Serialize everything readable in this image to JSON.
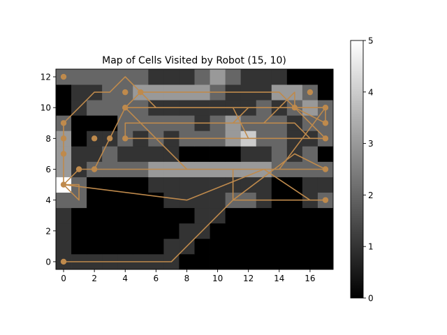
{
  "chart_data": {
    "type": "heatmap",
    "title": "Map of Cells Visited by Robot (15, 10)",
    "xlabel": "",
    "ylabel": "",
    "x_range": [
      -0.5,
      17.5
    ],
    "y_range": [
      -0.5,
      12.5
    ],
    "x_ticks": [
      0,
      2,
      4,
      6,
      8,
      10,
      12,
      14,
      16
    ],
    "y_ticks": [
      0,
      2,
      4,
      6,
      8,
      10,
      12
    ],
    "colormap": "gray",
    "color_range": [
      0,
      5
    ],
    "colorbar_ticks": [
      0,
      1,
      2,
      3,
      4,
      5
    ],
    "grid": false,
    "path_color": "#bf8a4c",
    "grid_cols": 18,
    "grid_rows": 13,
    "cells": [
      [
        1,
        1,
        1,
        1,
        1,
        1,
        1,
        1,
        0,
        0,
        0,
        0,
        0,
        0,
        0,
        0,
        0,
        0
      ],
      [
        1,
        0,
        0,
        0,
        0,
        0,
        0,
        1,
        1,
        0,
        0,
        0,
        0,
        0,
        0,
        0,
        0,
        0
      ],
      [
        1,
        0,
        0,
        0,
        0,
        0,
        0,
        0,
        1,
        1,
        0,
        0,
        0,
        0,
        0,
        0,
        0,
        0
      ],
      [
        1,
        0,
        0,
        0,
        0,
        0,
        0,
        0,
        0,
        1,
        1,
        0,
        0,
        0,
        0,
        0,
        0,
        0
      ],
      [
        2,
        2,
        0,
        0,
        0,
        0,
        0,
        1,
        1,
        1,
        1,
        2,
        2,
        1,
        0,
        0,
        1,
        2
      ],
      [
        5,
        2,
        0,
        0,
        0,
        0,
        1,
        1,
        1,
        1,
        1,
        1,
        1,
        1,
        0,
        0,
        1,
        1
      ],
      [
        3,
        1,
        2,
        2,
        2,
        2,
        3,
        3,
        3,
        3,
        3,
        3,
        3,
        3,
        2,
        2,
        2,
        2
      ],
      [
        3,
        1,
        1,
        2,
        1,
        1,
        1,
        1,
        0,
        0,
        0,
        0,
        1,
        1,
        2,
        1,
        2,
        0
      ],
      [
        3,
        0,
        1,
        1,
        2,
        1,
        2,
        1,
        2,
        2,
        2,
        3,
        4,
        2,
        2,
        1,
        1,
        2
      ],
      [
        2,
        0,
        0,
        0,
        2,
        2,
        2,
        2,
        2,
        1,
        2,
        3,
        2,
        2,
        2,
        1,
        2,
        2
      ],
      [
        0,
        1,
        2,
        2,
        2,
        2,
        1,
        1,
        1,
        1,
        1,
        1,
        1,
        2,
        1,
        2,
        3,
        2
      ],
      [
        0,
        1,
        1,
        2,
        2,
        3,
        3,
        3,
        3,
        3,
        2,
        1,
        1,
        1,
        3,
        3,
        2,
        0
      ],
      [
        2,
        2,
        2,
        2,
        2,
        2,
        1,
        1,
        1,
        2,
        3,
        2,
        1,
        1,
        1,
        0,
        0,
        0
      ]
    ],
    "path": [
      [
        0,
        0
      ],
      [
        7,
        0
      ],
      [
        11,
        4
      ],
      [
        11,
        6
      ],
      [
        1,
        6
      ],
      [
        0,
        5
      ],
      [
        1,
        5
      ],
      [
        1,
        4
      ],
      [
        0,
        5
      ],
      [
        0,
        9
      ],
      [
        2,
        11
      ],
      [
        3,
        11
      ],
      [
        4,
        12
      ],
      [
        6,
        10
      ],
      [
        11,
        10
      ],
      [
        12,
        8
      ],
      [
        16,
        8
      ],
      [
        15,
        9
      ],
      [
        4,
        9
      ],
      [
        4,
        8
      ],
      [
        17,
        8
      ],
      [
        14,
        11
      ],
      [
        5,
        11
      ],
      [
        4,
        10
      ],
      [
        17,
        10
      ],
      [
        17,
        9
      ],
      [
        15,
        10
      ],
      [
        12,
        10
      ],
      [
        11,
        9
      ],
      [
        13,
        9
      ],
      [
        15,
        11
      ],
      [
        15,
        10
      ],
      [
        17,
        10
      ],
      [
        14,
        6
      ],
      [
        2,
        6
      ],
      [
        4,
        10
      ],
      [
        8,
        6
      ],
      [
        17,
        6
      ],
      [
        15,
        7
      ],
      [
        11,
        4
      ],
      [
        17,
        4
      ],
      [
        16,
        4
      ],
      [
        13,
        6
      ],
      [
        8,
        4
      ],
      [
        0,
        5
      ]
    ],
    "markers": [
      [
        0,
        0
      ],
      [
        0,
        5
      ],
      [
        0,
        7
      ],
      [
        0,
        8
      ],
      [
        0,
        9
      ],
      [
        0,
        12
      ],
      [
        1,
        6
      ],
      [
        2,
        6
      ],
      [
        2,
        8
      ],
      [
        3,
        8
      ],
      [
        4,
        8
      ],
      [
        4,
        10
      ],
      [
        4,
        11
      ],
      [
        5,
        11
      ],
      [
        15,
        10
      ],
      [
        16,
        11
      ],
      [
        17,
        4
      ],
      [
        17,
        6
      ],
      [
        17,
        8
      ],
      [
        17,
        9
      ],
      [
        17,
        10
      ]
    ]
  }
}
